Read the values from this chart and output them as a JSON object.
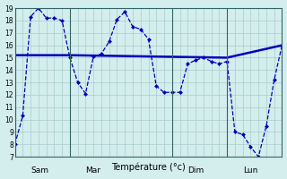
{
  "xlabel": "Température (°c)",
  "background_color": "#d4eded",
  "line_color": "#0000bb",
  "ylim": [
    7,
    19
  ],
  "yticks": [
    7,
    8,
    9,
    10,
    11,
    12,
    13,
    14,
    15,
    16,
    17,
    18,
    19
  ],
  "xlim": [
    0,
    34
  ],
  "day_positions": [
    2,
    9,
    22,
    29
  ],
  "day_labels": [
    "Sam",
    "Mar",
    "Dim",
    "Lun"
  ],
  "vline_positions": [
    0,
    7,
    20,
    27
  ],
  "grid_color": "#aacccc",
  "series1_x": [
    0,
    1,
    2,
    3,
    4,
    5,
    6,
    7,
    8,
    9,
    10,
    11,
    12,
    13,
    14,
    15,
    16,
    17,
    18,
    19,
    20,
    21,
    22,
    23,
    24,
    25,
    26,
    27,
    28,
    29,
    30,
    31,
    32,
    33,
    34
  ],
  "series1_y": [
    8.0,
    10.3,
    18.3,
    19.0,
    18.2,
    18.2,
    18.0,
    15.0,
    13.0,
    12.1,
    15.1,
    15.3,
    16.3,
    18.1,
    18.7,
    17.5,
    17.3,
    16.5,
    12.7,
    12.2,
    12.2,
    12.2,
    14.5,
    14.8,
    15.0,
    14.7,
    14.5,
    14.7,
    9.0,
    8.8,
    7.8,
    7.0,
    9.5,
    13.2,
    16.0
  ],
  "series2_x": [
    0,
    7,
    27,
    34
  ],
  "series2_y": [
    15.2,
    15.2,
    15.0,
    16.0
  ],
  "marker_size": 2.5
}
